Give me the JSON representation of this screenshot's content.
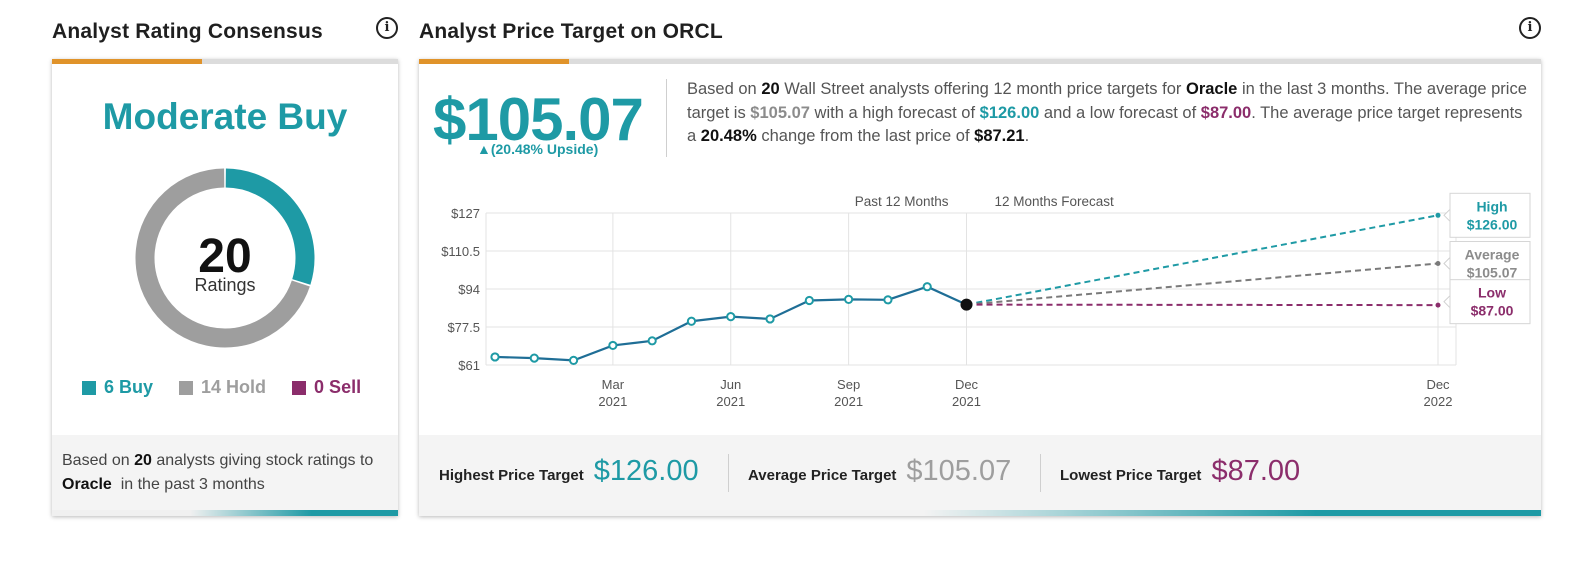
{
  "left": {
    "title": "Analyst Rating Consensus",
    "consensus": "Moderate Buy",
    "total": "20",
    "total_label": "Ratings",
    "buy": 6,
    "hold": 14,
    "sell": 0,
    "legend_buy": "6 Buy",
    "legend_hold": "14 Hold",
    "legend_sell": "0 Sell",
    "foot_pre": "Based on",
    "foot_num": "20",
    "foot_mid": "analysts giving stock ratings to",
    "foot_company": "Oracle",
    "foot_post": "in the past 3 months"
  },
  "right": {
    "title": "Analyst Price Target on ORCL",
    "price": "$105.07",
    "upside": "▲(20.48% Upside)",
    "desc": {
      "s1": "Based on",
      "n_analysts": "20",
      "s2": "Wall Street analysts offering 12 month price targets for",
      "company": "Oracle",
      "s3": "in the last 3 months. The average price target is",
      "avg": "$105.07",
      "s4": "with a high forecast of",
      "high": "$126.00",
      "s5": "and a low forecast of",
      "low": "$87.00",
      "s6": ". The average price target represents a",
      "pct": "20.48%",
      "s7": "change from the last price of",
      "last": "$87.21",
      "s8": "."
    },
    "footer": {
      "high_label": "Highest Price Target",
      "high_value": "$126.00",
      "avg_label": "Average Price Target",
      "avg_value": "$105.07",
      "low_label": "Lowest Price Target",
      "low_value": "$87.00"
    }
  },
  "colors": {
    "teal": "#1e9aa5",
    "gray": "#9e9e9e",
    "purple": "#8b2d6b",
    "orange": "#e0932a",
    "line": "#1f6e96"
  },
  "chart_data": {
    "type": "line",
    "x_start": "2020-12",
    "yticks": [
      61,
      77.5,
      94,
      110.5,
      127
    ],
    "ytick_labels": [
      "$61",
      "$77.5",
      "$94",
      "$110.5",
      "$127"
    ],
    "ylim": [
      61,
      127
    ],
    "xticks": [
      {
        "month": "2021-03",
        "label1": "Mar",
        "label2": "2021"
      },
      {
        "month": "2021-06",
        "label1": "Jun",
        "label2": "2021"
      },
      {
        "month": "2021-09",
        "label1": "Sep",
        "label2": "2021"
      },
      {
        "month": "2021-12",
        "label1": "Dec",
        "label2": "2021"
      },
      {
        "month": "2022-12",
        "label1": "Dec",
        "label2": "2022"
      }
    ],
    "region_labels": {
      "past": "Past 12 Months",
      "forecast": "12 Months Forecast"
    },
    "history": [
      {
        "month": "2020-12",
        "value": 64.5
      },
      {
        "month": "2021-01",
        "value": 64.0
      },
      {
        "month": "2021-02",
        "value": 63.0
      },
      {
        "month": "2021-03",
        "value": 69.5
      },
      {
        "month": "2021-04",
        "value": 71.5
      },
      {
        "month": "2021-05",
        "value": 80.0
      },
      {
        "month": "2021-06",
        "value": 82.0
      },
      {
        "month": "2021-07",
        "value": 81.0
      },
      {
        "month": "2021-08",
        "value": 89.0
      },
      {
        "month": "2021-09",
        "value": 89.5
      },
      {
        "month": "2021-10",
        "value": 89.3
      },
      {
        "month": "2021-11",
        "value": 95.0
      },
      {
        "month": "2021-12",
        "value": 87.21
      }
    ],
    "forecast": {
      "end_month": "2022-12",
      "high": 126.0,
      "average": 105.07,
      "low": 87.0,
      "high_label": "High",
      "high_text": "$126.00",
      "average_label": "Average",
      "average_text": "$105.07",
      "low_label": "Low",
      "low_text": "$87.00"
    }
  }
}
